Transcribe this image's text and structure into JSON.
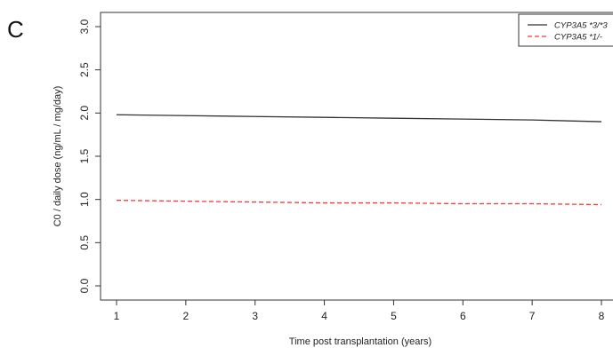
{
  "panel_label": "C",
  "chart_data": {
    "type": "line",
    "title": "",
    "xlabel": "Time post transplantation (years)",
    "ylabel": "C0 / daily dose (ng/mL / mg/day)",
    "xlim": [
      1,
      8
    ],
    "ylim": [
      0,
      3
    ],
    "x_ticks": [
      "1",
      "2",
      "3",
      "4",
      "5",
      "6",
      "7",
      "8"
    ],
    "y_ticks": [
      "0.0",
      "0.5",
      "1.0",
      "1.5",
      "2.0",
      "2.5",
      "3.0"
    ],
    "grid": false,
    "legend_position": "top-right",
    "series": [
      {
        "name": "CYP3A5 *3/*3",
        "color": "#333333",
        "dash": "solid",
        "x": [
          1,
          2,
          3,
          4,
          5,
          6,
          7,
          8
        ],
        "y": [
          1.98,
          1.97,
          1.96,
          1.95,
          1.94,
          1.93,
          1.92,
          1.9
        ]
      },
      {
        "name": "CYP3A5 *1/-",
        "color": "#ff3333",
        "dash": "dashed",
        "x": [
          1,
          2,
          3,
          4,
          5,
          6,
          7,
          8
        ],
        "y": [
          0.99,
          0.98,
          0.97,
          0.96,
          0.96,
          0.95,
          0.95,
          0.94
        ]
      }
    ]
  }
}
